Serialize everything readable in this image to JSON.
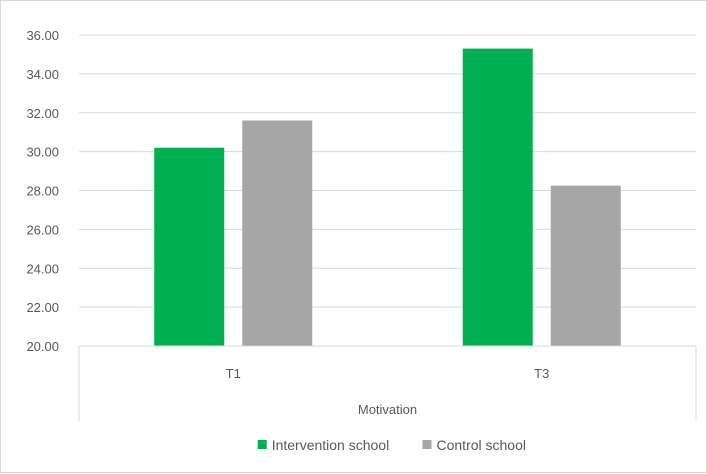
{
  "chart_data": {
    "type": "bar",
    "categories": [
      "T1",
      "T3"
    ],
    "group_label": "Motivation",
    "series": [
      {
        "name": "Intervention school",
        "values": [
          30.2,
          35.3
        ],
        "color": "#00b050"
      },
      {
        "name": "Control school",
        "values": [
          31.6,
          28.25
        ],
        "color": "#a6a6a6"
      }
    ],
    "ylim": [
      20,
      36
    ],
    "y_ticks": [
      "20.00",
      "22.00",
      "24.00",
      "26.00",
      "28.00",
      "30.00",
      "32.00",
      "34.00",
      "36.00"
    ],
    "grid": true,
    "legend_position": "bottom"
  }
}
